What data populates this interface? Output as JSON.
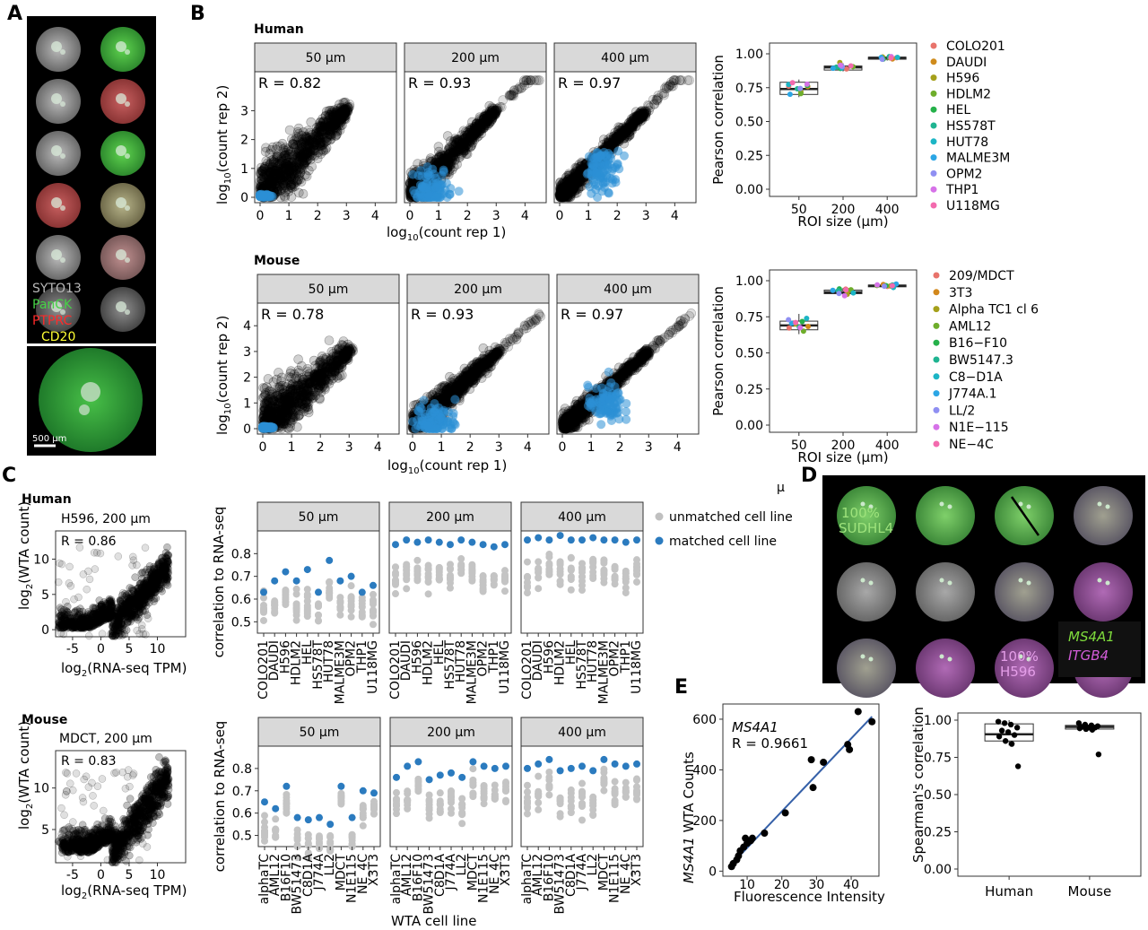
{
  "panels": {
    "A": "A",
    "B": "B",
    "C": "C",
    "D": "D",
    "E": "E"
  },
  "stray_text": "μ",
  "panelA": {
    "stain_labels": [
      {
        "text": "SYTO13",
        "color": "#b8b8b8"
      },
      {
        "text": "PanCK",
        "color": "#46d146"
      },
      {
        "text": "PTPRC",
        "color": "#ff2a2a"
      },
      {
        "text": "CD20",
        "color": "#ffff33"
      }
    ],
    "scalebar": "500 μm"
  },
  "panelB": {
    "human": {
      "title": "Human",
      "facets": [
        {
          "label": "50 μm",
          "r": "R =  0.82"
        },
        {
          "label": "200 μm",
          "r": "R =  0.93"
        },
        {
          "label": "400 μm",
          "r": "R =  0.97"
        }
      ],
      "xticks": [
        "0",
        "1",
        "2",
        "3",
        "4"
      ],
      "yticks": [
        "0",
        "1",
        "2",
        "3"
      ],
      "box_ylabel": "Pearson correlation",
      "box_yticks": [
        "1.00",
        "0.75",
        "0.50",
        "0.25",
        "0.00"
      ],
      "box_xticks": [
        "50",
        "200",
        "400"
      ],
      "box_xlabel": "ROI size (μm)",
      "legend": [
        {
          "name": "COLO201",
          "color": "#e8736b"
        },
        {
          "name": "DAUDI",
          "color": "#cf8b1c"
        },
        {
          "name": "H596",
          "color": "#a5a01a"
        },
        {
          "name": "HDLM2",
          "color": "#6ead2b"
        },
        {
          "name": "HEL",
          "color": "#25b14a"
        },
        {
          "name": "HS578T",
          "color": "#1fb491"
        },
        {
          "name": "HUT78",
          "color": "#1cb5c5"
        },
        {
          "name": "MALME3M",
          "color": "#2ba6e5"
        },
        {
          "name": "OPM2",
          "color": "#8f8ff2"
        },
        {
          "name": "THP1",
          "color": "#d672e8"
        },
        {
          "name": "U118MG",
          "color": "#f36aae"
        }
      ]
    },
    "mouse": {
      "title": "Mouse",
      "facets": [
        {
          "label": "50 μm",
          "r": "R =  0.78"
        },
        {
          "label": "200 μm",
          "r": "R =  0.93"
        },
        {
          "label": "400 μm",
          "r": "R =  0.97"
        }
      ],
      "xticks": [
        "0",
        "1",
        "2",
        "3",
        "4"
      ],
      "yticks": [
        "0",
        "1",
        "2",
        "3",
        "4"
      ],
      "box_ylabel": "Pearson correlation",
      "box_yticks": [
        "1.00",
        "0.75",
        "0.50",
        "0.25",
        "0.00"
      ],
      "box_xticks": [
        "50",
        "200",
        "400"
      ],
      "box_xlabel": "ROI size (μm)",
      "legend": [
        {
          "name": "209/MDCT",
          "color": "#e8736b"
        },
        {
          "name": "3T3",
          "color": "#d2881c"
        },
        {
          "name": "Alpha TC1 cl 6",
          "color": "#a5a01a"
        },
        {
          "name": "AML12",
          "color": "#6ead2b"
        },
        {
          "name": "B16−F10",
          "color": "#25b14a"
        },
        {
          "name": "BW5147.3",
          "color": "#1fb491"
        },
        {
          "name": "C8−D1A",
          "color": "#1cb5c5"
        },
        {
          "name": "J774A.1",
          "color": "#2ba6e5"
        },
        {
          "name": "LL/2",
          "color": "#8f8ff2"
        },
        {
          "name": "N1E−115",
          "color": "#d672e8"
        },
        {
          "name": "NE−4C",
          "color": "#f36aae"
        }
      ]
    },
    "xlabel_base": "log",
    "xlabel_sub": "10",
    "xlabel_rest": "(count rep 1)",
    "ylabel_base": "log",
    "ylabel_sub": "10",
    "ylabel_rest": "(count rep 2)"
  },
  "panelC": {
    "human": {
      "title": "Human",
      "scatter_title": "H596, 200 μm",
      "r": "R =  0.86",
      "xticks": [
        "-5",
        "0",
        "5",
        "10"
      ],
      "yticks": [
        "0",
        "5",
        "10"
      ],
      "dot_ylabel": "correlation to RNA-seq",
      "dot_yticks": [
        "0.8",
        "0.7",
        "0.6",
        "0.5"
      ],
      "facets": [
        "50 μm",
        "200 μm",
        "400 μm"
      ],
      "cell_lines": [
        "COLO201",
        "DAUDI",
        "H596",
        "HDLM2",
        "HEL",
        "HS578T",
        "HUT78",
        "MALME3M",
        "OPM2",
        "THP1",
        "U118MG"
      ],
      "legend_unmatched": "unmatched cell line",
      "legend_matched": "matched cell line"
    },
    "mouse": {
      "title": "Mouse",
      "scatter_title": "MDCT, 200 μm",
      "r": "R =  0.83",
      "xticks": [
        "-5",
        "0",
        "5",
        "10"
      ],
      "yticks": [
        "5",
        "10"
      ],
      "dot_ylabel": "correlation to RNA-seq",
      "dot_yticks": [
        "0.8",
        "0.7",
        "0.6",
        "0.5"
      ],
      "facets": [
        "50 μm",
        "200 μm",
        "400 μm"
      ],
      "cell_lines": [
        "alphaTC",
        "AML12",
        "B16F10",
        "BW51473",
        "C8D1A",
        "J774A",
        "LL2",
        "MDCT",
        "N1E115",
        "NE_4C",
        "X3T3"
      ],
      "xlabel": "WTA cell line"
    },
    "ylabel_base": "log",
    "ylabel_sub": "2",
    "ylabel_rest": "(WTA count)",
    "xlabel_base": "log",
    "xlabel_sub": "2",
    "xlabel_rest": "(RNA-seq TPM)"
  },
  "panelD": {
    "label1_pct": "100%",
    "label1_name": "SUDHL4",
    "label2_pct": "100%",
    "label2_name": "H596",
    "legend_gene1": "MS4A1",
    "legend_gene2": "ITGB4",
    "gene1_color": "#7fdc3c",
    "gene2_color": "#d25cd8"
  },
  "panelE": {
    "gene": "MS4A1",
    "r": "R = 0.9661",
    "ylabel_gene": "MS4A1",
    "ylabel_rest": " WTA Counts",
    "xlabel": "Fluorescence Intensity",
    "xticks": [
      "10",
      "20",
      "30",
      "40"
    ],
    "yticks": [
      "0",
      "200",
      "400",
      "600"
    ],
    "points": [
      [
        5.5,
        18
      ],
      [
        6,
        30
      ],
      [
        7,
        45
      ],
      [
        7.5,
        60
      ],
      [
        8,
        80
      ],
      [
        9,
        95
      ],
      [
        9.5,
        130
      ],
      [
        10,
        110
      ],
      [
        11,
        120
      ],
      [
        11.5,
        130
      ],
      [
        15,
        150
      ],
      [
        21,
        230
      ],
      [
        28.5,
        440
      ],
      [
        29,
        330
      ],
      [
        32,
        430
      ],
      [
        39,
        500
      ],
      [
        39.5,
        480
      ],
      [
        42,
        630
      ],
      [
        46,
        590
      ]
    ],
    "fit": [
      [
        5,
        20
      ],
      [
        46,
        610
      ]
    ],
    "box": {
      "ylabel": "Spearman's correlation",
      "yticks": [
        "1.00",
        "0.75",
        "0.50",
        "0.25",
        "0.00"
      ],
      "groups": [
        {
          "name": "Human",
          "q1": 0.86,
          "median": 0.905,
          "q3": 0.975,
          "wlo": 0.83,
          "whi": 1.0,
          "points": [
            0.99,
            0.98,
            0.97,
            0.95,
            0.93,
            0.92,
            0.9,
            0.89,
            0.86,
            0.84,
            0.69
          ]
        },
        {
          "name": "Mouse",
          "q1": 0.94,
          "median": 0.955,
          "q3": 0.965,
          "wlo": 0.93,
          "whi": 0.975,
          "points": [
            0.98,
            0.97,
            0.965,
            0.96,
            0.955,
            0.95,
            0.95,
            0.945,
            0.94,
            0.935,
            0.77
          ]
        }
      ]
    }
  }
}
